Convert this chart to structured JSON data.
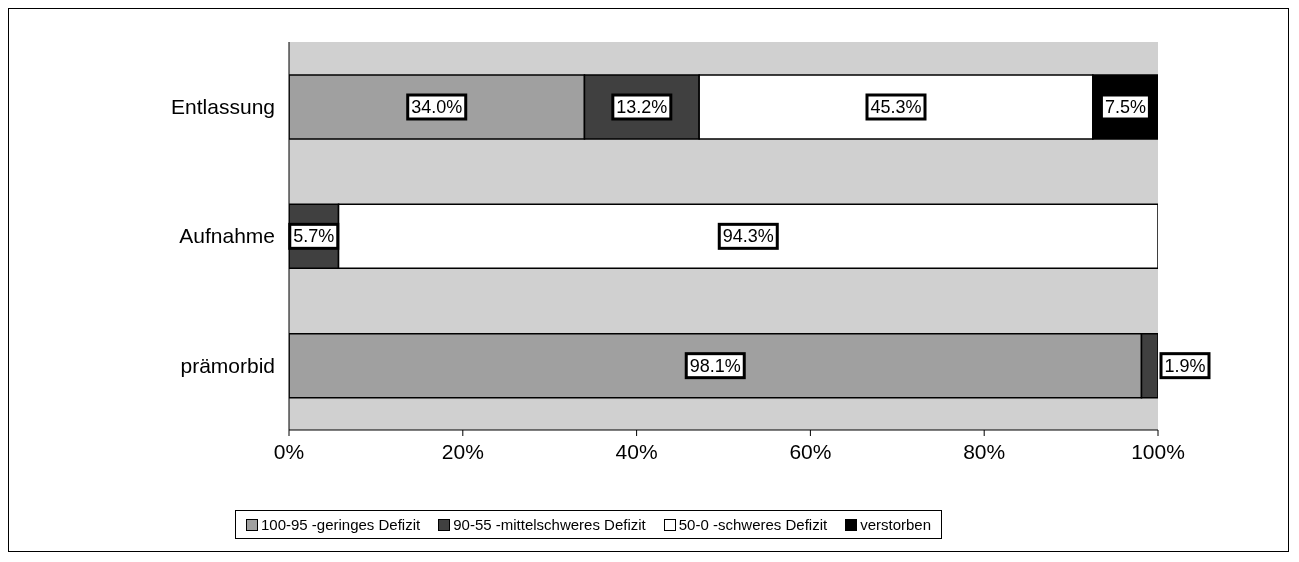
{
  "chart_data": {
    "type": "bar",
    "orientation": "horizontal",
    "stacked": true,
    "categories": [
      "Entlassung",
      "Aufnahme",
      "prämorbid"
    ],
    "series": [
      {
        "name": "100-95 -geringes Defizit",
        "color": "#a0a0a0",
        "values": [
          34.0,
          null,
          98.1
        ],
        "value_labels": [
          "34.0%",
          null,
          "98.1%"
        ]
      },
      {
        "name": "90-55 -mittelschweres Defizit",
        "color": "#404040",
        "values": [
          13.2,
          5.7,
          1.9
        ],
        "value_labels": [
          "13.2%",
          "5.7%",
          "1.9%"
        ]
      },
      {
        "name": "50-0 -schweres Defizit",
        "color": "#ffffff",
        "values": [
          45.3,
          94.3,
          null
        ],
        "value_labels": [
          "45.3%",
          "94.3%",
          null
        ]
      },
      {
        "name": "verstorben",
        "color": "#000000",
        "values": [
          7.5,
          null,
          null
        ],
        "value_labels": [
          "7.5%",
          null,
          null
        ]
      }
    ],
    "xlim": [
      0,
      100
    ],
    "xticks": [
      {
        "value": 0,
        "label": "0%"
      },
      {
        "value": 20,
        "label": "20%"
      },
      {
        "value": 40,
        "label": "40%"
      },
      {
        "value": 60,
        "label": "60%"
      },
      {
        "value": 80,
        "label": "80%"
      },
      {
        "value": 100,
        "label": "100%"
      }
    ],
    "legend": "bottom"
  }
}
